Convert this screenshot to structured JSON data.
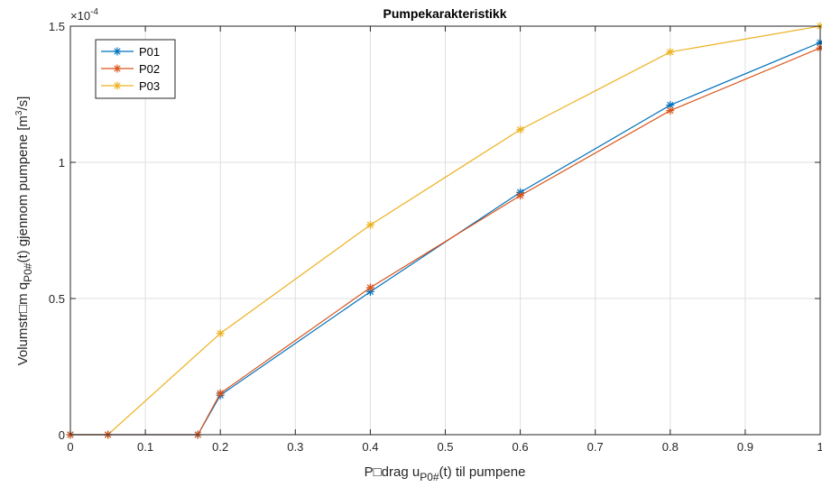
{
  "chart_data": {
    "type": "line",
    "title": "Pumpekarakteristikk",
    "xlabel": {
      "main": "P□drag u",
      "sub": "P0#",
      "rest": "(t) til pumpene"
    },
    "ylabel": {
      "main": "Volumstr□m q",
      "sub": "P0#",
      "mid": "(t) gjennom pumpene [m",
      "sup": "3",
      "end": "/s]"
    },
    "exponent": {
      "base": "×10",
      "power": "-4"
    },
    "xlim": [
      0,
      1
    ],
    "ylim": [
      0,
      1.5
    ],
    "xticks": [
      0,
      0.1,
      0.2,
      0.3,
      0.4,
      0.5,
      0.6,
      0.7,
      0.8,
      0.9,
      1
    ],
    "xticklabels": [
      "0",
      "0.1",
      "0.2",
      "0.3",
      "0.4",
      "0.5",
      "0.6",
      "0.7",
      "0.8",
      "0.9",
      "1"
    ],
    "yticks": [
      0,
      0.5,
      1,
      1.5
    ],
    "yticklabels": [
      "0",
      "0.5",
      "1",
      "1.5"
    ],
    "grid": true,
    "legend_position": "top-left",
    "series": [
      {
        "name": "P01",
        "color": "#0072BD",
        "x": [
          0,
          0.05,
          0.17,
          0.2,
          0.4,
          0.6,
          0.8,
          1.0
        ],
        "y": [
          0,
          0,
          0,
          0.145,
          0.525,
          0.89,
          1.21,
          1.44
        ]
      },
      {
        "name": "P02",
        "color": "#D95319",
        "x": [
          0,
          0.05,
          0.17,
          0.2,
          0.4,
          0.6,
          0.8,
          1.0
        ],
        "y": [
          0,
          0,
          0,
          0.152,
          0.54,
          0.878,
          1.19,
          1.42
        ]
      },
      {
        "name": "P03",
        "color": "#EDB120",
        "x": [
          0,
          0.05,
          0.2,
          0.4,
          0.6,
          0.8,
          1.0
        ],
        "y": [
          0,
          0,
          0.372,
          0.77,
          1.12,
          1.405,
          1.5
        ]
      }
    ]
  }
}
